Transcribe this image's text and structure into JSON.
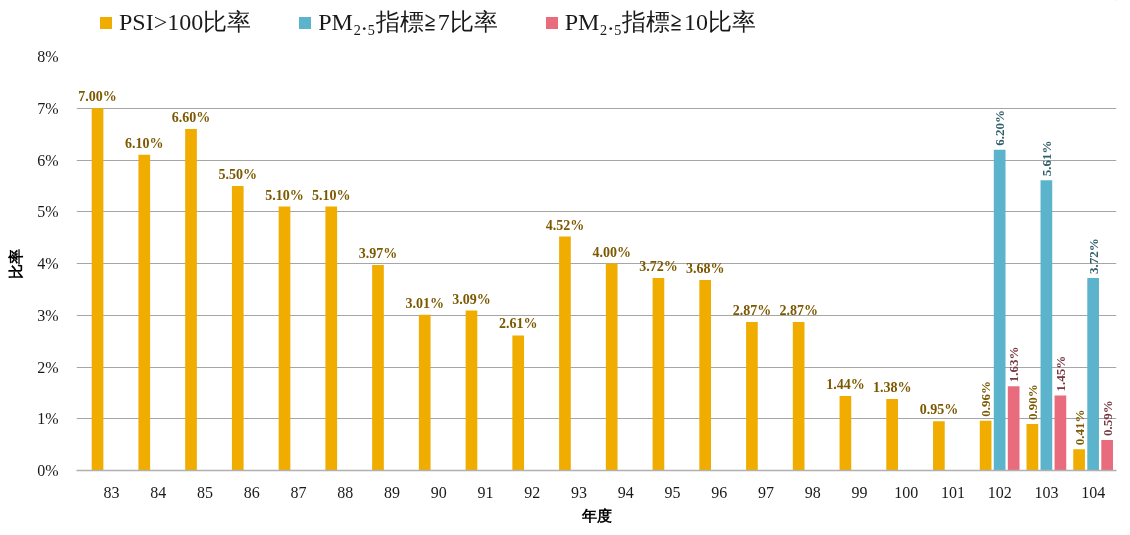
{
  "chart_data": {
    "type": "bar",
    "xlabel": "年度",
    "ylabel": "比率",
    "categories": [
      "83",
      "84",
      "85",
      "86",
      "87",
      "88",
      "89",
      "90",
      "91",
      "92",
      "93",
      "94",
      "95",
      "96",
      "97",
      "98",
      "99",
      "100",
      "101",
      "102",
      "103",
      "104"
    ],
    "series": [
      {
        "name": "PSI>100比率",
        "color": "#f0ad00",
        "values": [
          7.0,
          6.1,
          6.6,
          5.5,
          5.1,
          5.1,
          3.97,
          3.01,
          3.09,
          2.61,
          4.52,
          4.0,
          3.72,
          3.68,
          2.87,
          2.87,
          1.44,
          1.38,
          0.95,
          0.96,
          0.9,
          0.41
        ],
        "value_labels": [
          "7.00%",
          "6.10%",
          "6.60%",
          "5.50%",
          "5.10%",
          "5.10%",
          "3.97%",
          "3.01%",
          "3.09%",
          "2.61%",
          "4.52%",
          "4.00%",
          "3.72%",
          "3.68%",
          "2.87%",
          "2.87%",
          "1.44%",
          "1.38%",
          "0.95%",
          "0.96%",
          "0.90%",
          "0.41%"
        ]
      },
      {
        "name": "PM₂.₅指標≧7比率",
        "color": "#5bb4cc",
        "values": [
          null,
          null,
          null,
          null,
          null,
          null,
          null,
          null,
          null,
          null,
          null,
          null,
          null,
          null,
          null,
          null,
          null,
          null,
          null,
          6.2,
          5.61,
          3.72
        ],
        "value_labels": [
          null,
          null,
          null,
          null,
          null,
          null,
          null,
          null,
          null,
          null,
          null,
          null,
          null,
          null,
          null,
          null,
          null,
          null,
          null,
          "6.20%",
          "5.61%",
          "3.72%"
        ]
      },
      {
        "name": "PM₂.₅指標≧10比率",
        "color": "#e86c7d",
        "values": [
          null,
          null,
          null,
          null,
          null,
          null,
          null,
          null,
          null,
          null,
          null,
          null,
          null,
          null,
          null,
          null,
          null,
          null,
          null,
          1.63,
          1.45,
          0.59
        ],
        "value_labels": [
          null,
          null,
          null,
          null,
          null,
          null,
          null,
          null,
          null,
          null,
          null,
          null,
          null,
          null,
          null,
          null,
          null,
          null,
          null,
          "1.63%",
          "1.45%",
          "0.59%"
        ]
      }
    ],
    "ylim": [
      0,
      8
    ],
    "yticks": [
      {
        "value": 0,
        "label": "0%"
      },
      {
        "value": 1,
        "label": "1%"
      },
      {
        "value": 2,
        "label": "2%"
      },
      {
        "value": 3,
        "label": "3%"
      },
      {
        "value": 4,
        "label": "4%"
      },
      {
        "value": 5,
        "label": "5%"
      },
      {
        "value": 6,
        "label": "6%"
      },
      {
        "value": 7,
        "label": "7%"
      },
      {
        "value": 8,
        "label": "8%"
      }
    ],
    "grid": "y",
    "legend": "top"
  }
}
